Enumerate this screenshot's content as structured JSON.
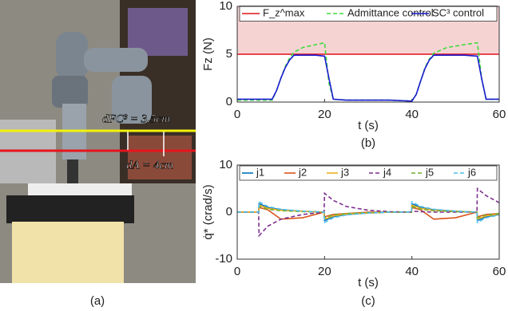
{
  "photo": {
    "caption": "(a)",
    "annotations": [
      "dFC³ = 3.5cm",
      "dA = 4cm"
    ]
  },
  "chart_data": [
    {
      "type": "line",
      "caption": "(b)",
      "ylabel": "Fz (N)",
      "xlabel": "t (s)",
      "x": [
        0,
        8,
        9,
        10,
        11,
        12,
        13,
        15,
        18,
        20,
        21,
        22,
        25,
        30,
        35,
        40,
        41,
        42,
        43,
        44,
        45,
        48,
        52,
        55,
        56,
        57,
        60
      ],
      "xlim": [
        0,
        60
      ],
      "ylim": [
        0,
        10
      ],
      "xticks": [
        0,
        20,
        40,
        60
      ],
      "yticks": [
        0,
        5,
        10
      ],
      "shaded_band": [
        5,
        10
      ],
      "shaded_color": "#f6d3d3",
      "legend": "top",
      "series": [
        {
          "name": "F_z^max",
          "color": "#e0101a",
          "line_style": "solid",
          "values": [
            5,
            5,
            5,
            5,
            5,
            5,
            5,
            5,
            5,
            5,
            5,
            5,
            5,
            5,
            5,
            5,
            5,
            5,
            5,
            5,
            5,
            5,
            5,
            5,
            5,
            5,
            5
          ]
        },
        {
          "name": "Admittance control",
          "color": "#3ddc3d",
          "line_style": "dashed",
          "values": [
            0.2,
            0.2,
            1.2,
            2.5,
            3.7,
            4.6,
            5.2,
            5.7,
            6.0,
            6.2,
            2.0,
            0.3,
            0.2,
            0.2,
            0.2,
            0.1,
            0.8,
            2.2,
            3.6,
            4.5,
            5.1,
            5.7,
            6.0,
            6.2,
            2.4,
            0.3,
            0.3
          ]
        },
        {
          "name": "SC³ control",
          "color": "#1a1ad0",
          "line_style": "solid",
          "values": [
            0.3,
            0.3,
            1.2,
            2.5,
            3.6,
            4.4,
            4.9,
            4.9,
            4.9,
            4.8,
            2.5,
            0.3,
            0.2,
            0.2,
            0.2,
            0.1,
            0.8,
            2.2,
            3.5,
            4.4,
            4.9,
            4.9,
            4.9,
            4.8,
            2.4,
            0.3,
            0.3
          ]
        }
      ]
    },
    {
      "type": "line",
      "caption": "(c)",
      "ylabel": "q̇* (crad/s)",
      "xlabel": "t (s)",
      "x": [
        0,
        4.9,
        5,
        7,
        10,
        15,
        19.9,
        20,
        22,
        25,
        30,
        35,
        39.9,
        40,
        42,
        45,
        50,
        54.9,
        55,
        57,
        60
      ],
      "xlim": [
        0,
        60
      ],
      "ylim": [
        -10,
        10
      ],
      "xticks": [
        0,
        20,
        40,
        60
      ],
      "yticks": [
        -10,
        0,
        10
      ],
      "legend": "top",
      "series": [
        {
          "name": "j1",
          "color": "#0072bd",
          "line_style": "solid",
          "values": [
            0,
            0,
            1.8,
            1,
            0.5,
            0.2,
            0,
            -1.8,
            -1,
            -0.5,
            -0.2,
            0,
            0,
            1.8,
            1,
            0.5,
            0.2,
            0,
            -1.8,
            -1,
            -0.5
          ]
        },
        {
          "name": "j2",
          "color": "#d95319",
          "line_style": "solid",
          "values": [
            0,
            0,
            1,
            0.5,
            -1.5,
            -1.2,
            0,
            -1,
            -0.5,
            -0.3,
            0,
            0,
            0,
            1,
            0.5,
            -1.5,
            -1.2,
            0,
            -1,
            -0.5,
            -0.3
          ]
        },
        {
          "name": "j3",
          "color": "#edb120",
          "line_style": "solid",
          "values": [
            0,
            0,
            1.5,
            0.8,
            0.4,
            0.2,
            0,
            -1.5,
            -0.8,
            -0.4,
            -0.2,
            0,
            0,
            1.5,
            0.8,
            0.4,
            0.2,
            0,
            -1.5,
            -0.8,
            -0.4
          ]
        },
        {
          "name": "j4",
          "color": "#7e2f8e",
          "line_style": "dashed",
          "values": [
            0,
            0,
            -5,
            -3,
            -1.5,
            -0.5,
            0,
            4,
            2.5,
            1.2,
            0.4,
            0.1,
            0,
            0.2,
            0.1,
            0,
            0,
            0,
            5,
            3.5,
            2
          ]
        },
        {
          "name": "j5",
          "color": "#77ac30",
          "line_style": "dashed",
          "values": [
            0,
            0,
            1.2,
            0.6,
            0.3,
            0.1,
            0,
            -1.2,
            -0.6,
            -0.3,
            -0.1,
            0,
            0,
            1.2,
            0.6,
            0.3,
            0.1,
            0,
            -1.2,
            -0.6,
            -0.3
          ]
        },
        {
          "name": "j6",
          "color": "#4dbeee",
          "line_style": "dashed",
          "values": [
            0,
            0,
            2.2,
            1.2,
            0.6,
            0.2,
            0,
            -2.2,
            -1.2,
            -0.6,
            -0.2,
            0,
            0,
            2.2,
            1.2,
            0.6,
            0.2,
            0,
            -2.2,
            -1.2,
            -0.6
          ]
        }
      ]
    }
  ]
}
